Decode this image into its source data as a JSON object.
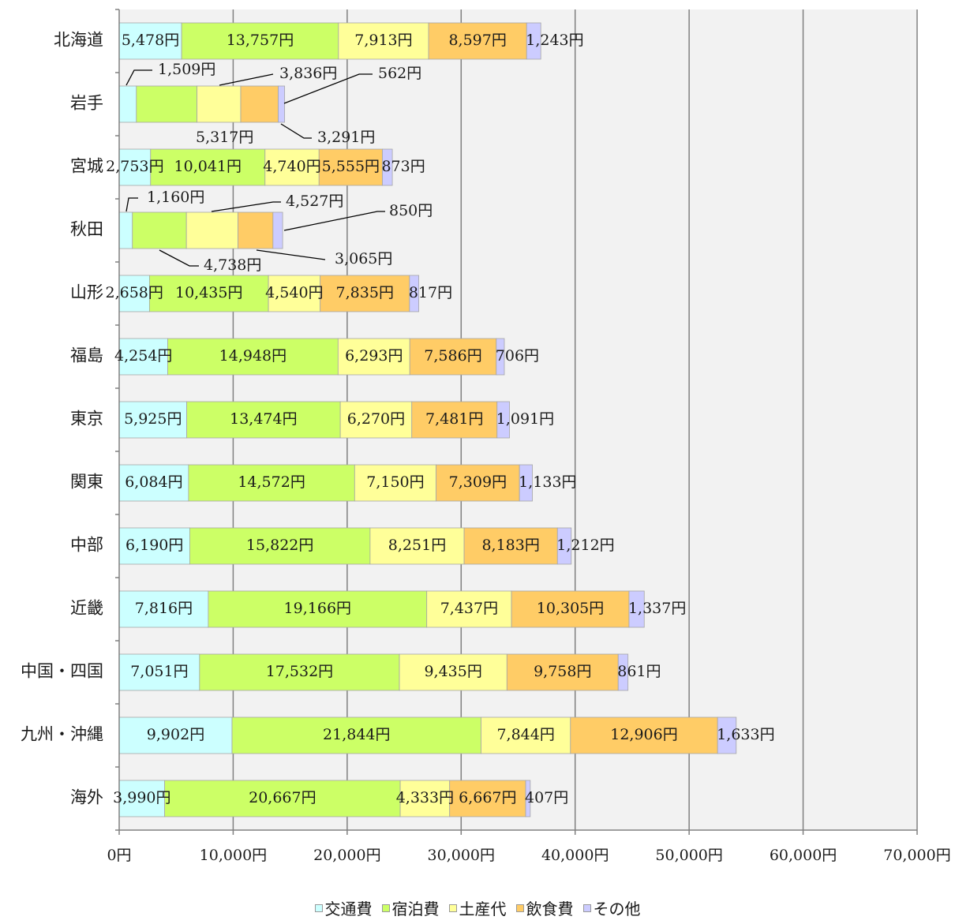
{
  "chart_data": {
    "type": "bar",
    "orientation": "horizontal",
    "stacked": true,
    "categories": [
      "北海道",
      "岩手",
      "宮城",
      "秋田",
      "山形",
      "福島",
      "東京",
      "関東",
      "中部",
      "近畿",
      "中国・四国",
      "九州・沖縄",
      "海外"
    ],
    "series": [
      {
        "name": "交通費",
        "color": "#ccffff",
        "values": [
          5478,
          1509,
          2753,
          1160,
          2658,
          4254,
          5925,
          6084,
          6190,
          7816,
          7051,
          9902,
          3990
        ]
      },
      {
        "name": "宿泊費",
        "color": "#ccff66",
        "values": [
          13757,
          5317,
          10041,
          4738,
          10435,
          14948,
          13474,
          14572,
          15822,
          19166,
          17532,
          21844,
          20667
        ]
      },
      {
        "name": "土産代",
        "color": "#ffff99",
        "values": [
          7913,
          3836,
          4740,
          4527,
          4540,
          6293,
          6270,
          7150,
          8251,
          7437,
          9435,
          7844,
          4333
        ]
      },
      {
        "name": "飲食費",
        "color": "#ffcc66",
        "values": [
          8597,
          3291,
          5555,
          3065,
          7835,
          7586,
          7481,
          7309,
          8183,
          10305,
          9758,
          12906,
          6667
        ]
      },
      {
        "name": "その他",
        "color": "#ccccff",
        "values": [
          1243,
          562,
          873,
          850,
          817,
          706,
          1091,
          1133,
          1212,
          1337,
          861,
          1633,
          407
        ]
      }
    ],
    "unit": "円",
    "xlim": [
      0,
      70000
    ],
    "x_ticks": [
      0,
      10000,
      20000,
      30000,
      40000,
      50000,
      60000,
      70000
    ],
    "x_tick_labels": [
      "0円",
      "10,000円",
      "20,000円",
      "30,000円",
      "40,000円",
      "50,000円",
      "60,000円",
      "70,000円"
    ],
    "grid": true,
    "legend_position": "bottom",
    "data_labels": [
      [
        "5,478円",
        "13,757円",
        "7,913円",
        "8,597円",
        "1,243円"
      ],
      [
        "1,509円",
        "5,317円",
        "3,836円",
        "3,291円",
        "562円"
      ],
      [
        "2,753円",
        "10,041円",
        "4,740円",
        "5,555円",
        "873円"
      ],
      [
        "1,160円",
        "4,738円",
        "4,527円",
        "3,065円",
        "850円"
      ],
      [
        "2,658円",
        "10,435円",
        "4,540円",
        "7,835円",
        "817円"
      ],
      [
        "4,254円",
        "14,948円",
        "6,293円",
        "7,586円",
        "706円"
      ],
      [
        "5,925円",
        "13,474円",
        "6,270円",
        "7,481円",
        "1,091円"
      ],
      [
        "6,084円",
        "14,572円",
        "7,150円",
        "7,309円",
        "1,133円"
      ],
      [
        "6,190円",
        "15,822円",
        "8,251円",
        "8,183円",
        "1,212円"
      ],
      [
        "7,816円",
        "19,166円",
        "7,437円",
        "10,305円",
        "1,337円"
      ],
      [
        "7,051円",
        "17,532円",
        "9,435円",
        "9,758円",
        "861円"
      ],
      [
        "9,902円",
        "21,844円",
        "7,844円",
        "12,906円",
        "1,633円"
      ],
      [
        "3,990円",
        "20,667円",
        "4,333円",
        "6,667円",
        "407円"
      ]
    ]
  }
}
